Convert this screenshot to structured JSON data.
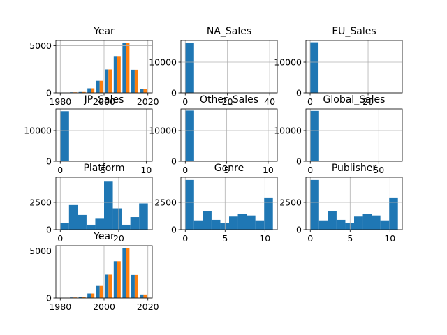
{
  "chart_data": [
    {
      "type": "histogram",
      "title": "Year",
      "bins": [
        1980,
        1984,
        1988,
        1992,
        1996,
        2000,
        2004,
        2008,
        2012,
        2016,
        2020
      ],
      "series": [
        {
          "color": "#1f77b4",
          "values": [
            15,
            60,
            90,
            480,
            1280,
            2480,
            3900,
            5300,
            2450,
            380
          ]
        },
        {
          "color": "#ff7f0e",
          "values": [
            15,
            60,
            90,
            480,
            1280,
            2480,
            3900,
            5300,
            2450,
            380
          ]
        }
      ],
      "xlim": [
        1978,
        2022
      ],
      "ylim": [
        0,
        5550
      ],
      "xticks": [
        1980,
        2000,
        2020
      ],
      "yticks": [
        0,
        5000
      ],
      "grid": true
    },
    {
      "type": "histogram",
      "title": "NA_Sales",
      "bins": [
        0,
        4.15,
        8.3,
        12.45,
        16.6,
        20.75,
        24.9,
        29.05,
        33.2,
        37.35,
        41.5
      ],
      "series": [
        {
          "color": "#1f77b4",
          "values": [
            16350,
            50,
            10,
            5,
            2,
            1,
            0,
            0,
            0,
            1
          ]
        }
      ],
      "xlim": [
        -2.07,
        43.6
      ],
      "ylim": [
        0,
        17045
      ],
      "xticks": [
        0,
        20,
        40
      ],
      "yticks": [
        0,
        10000
      ],
      "grid": true
    },
    {
      "type": "histogram",
      "title": "EU_Sales",
      "bins": [
        0,
        2.9,
        5.8,
        8.7,
        11.6,
        14.5,
        17.4,
        20.3,
        23.2,
        26.1,
        29
      ],
      "series": [
        {
          "color": "#1f77b4",
          "values": [
            16450,
            120,
            20,
            5,
            2,
            1,
            0,
            0,
            0,
            1
          ]
        }
      ],
      "xlim": [
        -1.45,
        31.8
      ],
      "ylim": [
        0,
        17045
      ],
      "xticks": [
        0,
        20
      ],
      "yticks": [
        0,
        10000
      ],
      "grid": true
    },
    {
      "type": "histogram",
      "title": "JP_Sales",
      "bins": [
        0,
        1.02,
        2.04,
        3.06,
        4.08,
        5.1,
        6.12,
        7.14,
        8.16,
        9.18,
        10.2
      ],
      "series": [
        {
          "color": "#1f77b4",
          "values": [
            16300,
            200,
            50,
            15,
            5,
            3,
            1,
            1,
            0,
            1
          ]
        }
      ],
      "xlim": [
        -0.51,
        10.7
      ],
      "ylim": [
        0,
        17045
      ],
      "xticks": [
        0,
        5,
        10
      ],
      "yticks": [
        0,
        10000
      ],
      "grid": true
    },
    {
      "type": "histogram",
      "title": "Other_Sales",
      "bins": [
        0,
        1.06,
        2.12,
        3.18,
        4.24,
        5.3,
        6.36,
        7.42,
        8.48,
        9.54,
        10.6
      ],
      "series": [
        {
          "color": "#1f77b4",
          "values": [
            16500,
            50,
            10,
            3,
            1,
            0,
            0,
            0,
            0,
            1
          ]
        }
      ],
      "xlim": [
        -0.53,
        11.1
      ],
      "ylim": [
        0,
        17045
      ],
      "xticks": [
        0,
        5,
        10
      ],
      "yticks": [
        0,
        10000
      ],
      "grid": true
    },
    {
      "type": "histogram",
      "title": "Global_Sales",
      "bins": [
        0,
        6.4,
        12.8,
        19.2,
        25.6,
        32,
        38.4,
        44.8,
        51.2,
        57.6,
        64
      ],
      "series": [
        {
          "color": "#1f77b4",
          "values": [
            16400,
            100,
            20,
            5,
            3,
            1,
            0,
            0,
            0,
            1
          ]
        }
      ],
      "xlim": [
        -3.2,
        67.2
      ],
      "ylim": [
        0,
        17045
      ],
      "xticks": [
        0,
        50
      ],
      "yticks": [
        0,
        10000
      ],
      "grid": true
    },
    {
      "type": "histogram",
      "title": "Platform",
      "bins": [
        0,
        3,
        6,
        9,
        12,
        15,
        18,
        21,
        24,
        27,
        30
      ],
      "series": [
        {
          "color": "#1f77b4",
          "values": [
            600,
            2250,
            1350,
            450,
            1000,
            4400,
            1950,
            450,
            1150,
            2400
          ]
        }
      ],
      "xlim": [
        -1.5,
        31.5
      ],
      "ylim": [
        0,
        4800
      ],
      "xticks": [
        0,
        20
      ],
      "yticks": [
        0,
        2500
      ],
      "grid": true
    },
    {
      "type": "histogram",
      "title": "Genre",
      "bins": [
        0,
        1.1,
        2.2,
        3.3,
        4.4,
        5.5,
        6.6,
        7.7,
        8.8,
        9.9,
        11
      ],
      "series": [
        {
          "color": "#1f77b4",
          "values": [
            4550,
            850,
            1700,
            900,
            600,
            1200,
            1450,
            1300,
            850,
            2950
          ]
        }
      ],
      "xlim": [
        -0.55,
        11.55
      ],
      "ylim": [
        0,
        4800
      ],
      "xticks": [
        0,
        5,
        10
      ],
      "yticks": [
        0,
        2500
      ],
      "grid": true
    },
    {
      "type": "histogram",
      "title": "Publisher",
      "bins": [
        0,
        1.1,
        2.2,
        3.3,
        4.4,
        5.5,
        6.6,
        7.7,
        8.8,
        9.9,
        11
      ],
      "series": [
        {
          "color": "#1f77b4",
          "values": [
            4550,
            850,
            1700,
            900,
            600,
            1200,
            1450,
            1300,
            850,
            2950
          ]
        }
      ],
      "xlim": [
        -0.55,
        11.55
      ],
      "ylim": [
        0,
        4800
      ],
      "xticks": [
        0,
        5,
        10
      ],
      "yticks": [
        0,
        2500
      ],
      "grid": true
    },
    {
      "type": "histogram",
      "title": "Year",
      "bins": [
        1980,
        1984,
        1988,
        1992,
        1996,
        2000,
        2004,
        2008,
        2012,
        2016,
        2020
      ],
      "series": [
        {
          "color": "#1f77b4",
          "values": [
            15,
            60,
            90,
            480,
            1280,
            2480,
            3900,
            5300,
            2450,
            380
          ]
        },
        {
          "color": "#ff7f0e",
          "values": [
            15,
            60,
            90,
            480,
            1280,
            2480,
            3900,
            5300,
            2450,
            380
          ]
        }
      ],
      "xlim": [
        1978,
        2022
      ],
      "ylim": [
        0,
        5550
      ],
      "xticks": [
        1980,
        2000,
        2020
      ],
      "yticks": [
        0,
        5000
      ],
      "grid": true
    }
  ]
}
